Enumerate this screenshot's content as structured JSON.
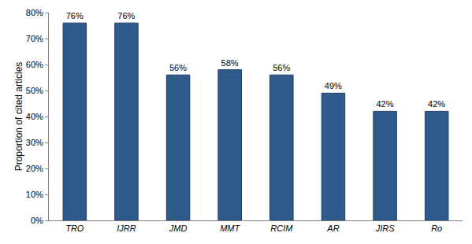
{
  "chart_data": {
    "type": "bar",
    "y_label": "Proportion of cited articles",
    "categories": [
      "TRO",
      "IJRR",
      "JMD",
      "MMT",
      "RCIM",
      "AR",
      "JIRS",
      "Ro"
    ],
    "values": [
      76,
      76,
      56,
      58,
      56,
      49,
      42,
      42
    ],
    "value_labels": [
      "76%",
      "76%",
      "56%",
      "58%",
      "56%",
      "49%",
      "42%",
      "42%"
    ],
    "data_labels": true,
    "color": "#2f5a8c",
    "ylim": [
      0,
      80
    ],
    "yticks": [
      {
        "value": 0,
        "label": "0%"
      },
      {
        "value": 10,
        "label": "10%"
      },
      {
        "value": 20,
        "label": "20%"
      },
      {
        "value": 30,
        "label": "30%"
      },
      {
        "value": 40,
        "label": "40%"
      },
      {
        "value": 50,
        "label": "50%"
      },
      {
        "value": 60,
        "label": "60%"
      },
      {
        "value": 70,
        "label": "70%"
      },
      {
        "value": 80,
        "label": "80%"
      }
    ],
    "grid": false
  }
}
